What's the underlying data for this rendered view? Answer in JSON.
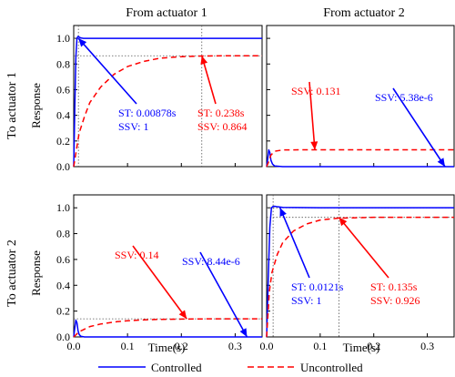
{
  "chart_data": {
    "type": "line",
    "title": "",
    "column_titles": [
      "From actuator 1",
      "From actuator 2"
    ],
    "row_titles": [
      "To actuator 1",
      "To actuator 2"
    ],
    "ylabel": "Response",
    "xlabel": "Time(s)",
    "xlim": [
      0,
      0.35
    ],
    "ylim": [
      0,
      1.1
    ],
    "xticks": [
      0.0,
      0.1,
      0.2,
      0.3
    ],
    "xtick_labels": [
      "0.0",
      "0.1",
      "0.2",
      "0.3"
    ],
    "yticks": [
      0.0,
      0.2,
      0.4,
      0.6,
      0.8,
      1.0
    ],
    "ytick_labels": [
      "0.0",
      "0.2",
      "0.4",
      "0.6",
      "0.8",
      "1.0"
    ],
    "grid": false,
    "legend_position": "bottom",
    "colors": {
      "controlled": "#0000ff",
      "uncontrolled": "#ff0000"
    },
    "legend": [
      {
        "name": "Controlled",
        "style": "solid",
        "color": "#0000ff"
      },
      {
        "name": "Uncontrolled",
        "style": "dash",
        "color": "#ff0000"
      }
    ],
    "panels": [
      {
        "row": 0,
        "col": 0,
        "series": [
          {
            "name": "Controlled",
            "color": "#0000ff",
            "x": [
              0,
              0.002,
              0.004,
              0.006,
              0.008,
              0.01,
              0.013,
              0.018,
              0.03,
              0.1,
              0.2,
              0.35
            ],
            "y": [
              0,
              0.45,
              0.85,
              1.0,
              1.015,
              1.01,
              1.003,
              1.0,
              1.0,
              1.0,
              1.0,
              1.0
            ]
          },
          {
            "name": "Uncontrolled",
            "color": "#ff0000",
            "x": [
              0,
              0.01,
              0.02,
              0.03,
              0.05,
              0.075,
              0.1,
              0.13,
              0.16,
              0.2,
              0.238,
              0.28,
              0.35
            ],
            "y": [
              0,
              0.26,
              0.39,
              0.5,
              0.62,
              0.72,
              0.78,
              0.82,
              0.845,
              0.857,
              0.862,
              0.864,
              0.864
            ]
          }
        ],
        "reference_lines": {
          "h": [
            1.0,
            0.864
          ],
          "v": [
            0.00878,
            0.238
          ]
        },
        "annotations": [
          {
            "lines": [
              "ST: 0.00878s",
              "SSV: 1"
            ],
            "color": "#0000ff"
          },
          {
            "lines": [
              "ST: 0.238s",
              "SSV: 0.864"
            ],
            "color": "#ff0000"
          }
        ]
      },
      {
        "row": 0,
        "col": 1,
        "series": [
          {
            "name": "Controlled",
            "color": "#0000ff",
            "x": [
              0,
              0.002,
              0.004,
              0.006,
              0.008,
              0.011,
              0.015,
              0.03,
              0.1,
              0.35
            ],
            "y": [
              0,
              0.06,
              0.13,
              0.11,
              0.05,
              0.02,
              0.005,
              0.0,
              0.0,
              0.0
            ]
          },
          {
            "name": "Uncontrolled",
            "color": "#ff0000",
            "x": [
              0,
              0.004,
              0.008,
              0.015,
              0.03,
              0.06,
              0.1,
              0.2,
              0.35
            ],
            "y": [
              0,
              0.04,
              0.09,
              0.12,
              0.13,
              0.131,
              0.131,
              0.131,
              0.131
            ]
          }
        ],
        "reference_lines": {
          "h": [],
          "v": []
        },
        "annotations": [
          {
            "lines": [
              "SSV: 0.131"
            ],
            "color": "#ff0000"
          },
          {
            "lines": [
              "SSV: 5.38e-6"
            ],
            "color": "#0000ff"
          }
        ]
      },
      {
        "row": 1,
        "col": 0,
        "series": [
          {
            "name": "Controlled",
            "color": "#0000ff",
            "x": [
              0,
              0.002,
              0.004,
              0.006,
              0.008,
              0.01,
              0.013,
              0.02,
              0.1,
              0.35
            ],
            "y": [
              0,
              0.07,
              0.13,
              0.11,
              0.05,
              0.02,
              0.005,
              0.0,
              0.0,
              0.0
            ]
          },
          {
            "name": "Uncontrolled",
            "color": "#ff0000",
            "x": [
              0,
              0.01,
              0.03,
              0.05,
              0.08,
              0.1,
              0.13,
              0.16,
              0.2,
              0.25,
              0.3,
              0.35
            ],
            "y": [
              0,
              0.04,
              0.08,
              0.1,
              0.118,
              0.125,
              0.132,
              0.136,
              0.138,
              0.14,
              0.14,
              0.14
            ]
          }
        ],
        "reference_lines": {
          "h": [
            0.14
          ],
          "v": []
        },
        "annotations": [
          {
            "lines": [
              "SSV: 0.14"
            ],
            "color": "#ff0000"
          },
          {
            "lines": [
              "SSV: 8.44e-6"
            ],
            "color": "#0000ff"
          }
        ]
      },
      {
        "row": 1,
        "col": 1,
        "series": [
          {
            "name": "Controlled",
            "color": "#0000ff",
            "x": [
              0,
              0.003,
              0.006,
              0.009,
              0.012,
              0.015,
              0.02,
              0.03,
              0.1,
              0.35
            ],
            "y": [
              0,
              0.45,
              0.85,
              1.0,
              1.01,
              1.012,
              1.008,
              1.003,
              1.0,
              1.0
            ]
          },
          {
            "name": "Uncontrolled",
            "color": "#ff0000",
            "x": [
              0,
              0.005,
              0.01,
              0.02,
              0.03,
              0.05,
              0.075,
              0.1,
              0.135,
              0.2,
              0.35
            ],
            "y": [
              0,
              0.35,
              0.5,
              0.64,
              0.73,
              0.82,
              0.875,
              0.905,
              0.92,
              0.926,
              0.926
            ]
          }
        ],
        "reference_lines": {
          "h": [
            1.0,
            0.926
          ],
          "v": [
            0.0121,
            0.135
          ]
        },
        "annotations": [
          {
            "lines": [
              "ST: 0.0121s",
              "SSV: 1"
            ],
            "color": "#0000ff"
          },
          {
            "lines": [
              "ST: 0.135s",
              "SSV: 0.926"
            ],
            "color": "#ff0000"
          }
        ]
      }
    ]
  }
}
